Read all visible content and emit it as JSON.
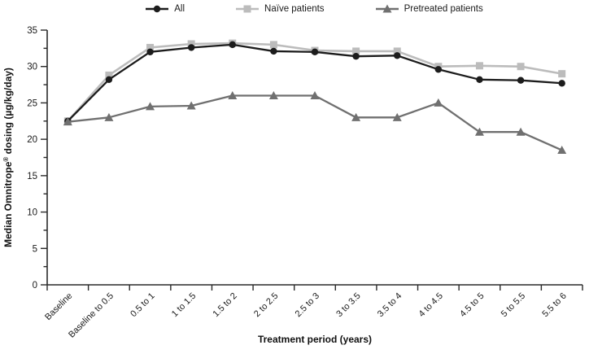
{
  "legend": {
    "position": "top",
    "items": [
      {
        "label": "All"
      },
      {
        "label": "Naïve patients"
      },
      {
        "label": "Pretreated patients"
      }
    ]
  },
  "chart_data": {
    "type": "line",
    "title": "",
    "xlabel": "Treatment period (years)",
    "ylabel": "Median Omnitrope® dosing (µg/kg/day)",
    "ylim": [
      0,
      35
    ],
    "y_major_step": 5,
    "y_minor_step": 2.5,
    "grid": false,
    "legend_position": "top",
    "x_tick_label_rotation": -45,
    "y_tick_labels": [
      "0",
      "5",
      "10",
      "15",
      "20",
      "25",
      "30",
      "35"
    ],
    "categories": [
      "Baseline",
      "Baseline to 0.5",
      "0.5 to 1",
      "1 to 1.5",
      "1.5 to 2",
      "2 to 2.5",
      "2.5 to 3",
      "3 to 3.5",
      "3.5 to 4",
      "4 to 4.5",
      "4.5 to 5",
      "5 to 5.5",
      "5.5 to 6"
    ],
    "series": [
      {
        "name": "All",
        "marker": "circle",
        "color": "#1c1c1c",
        "line_width": 2.3,
        "values": [
          22.5,
          28.2,
          32.0,
          32.6,
          33.0,
          32.1,
          32.0,
          31.4,
          31.5,
          29.6,
          28.2,
          28.1,
          27.7
        ]
      },
      {
        "name": "Naïve patients",
        "marker": "square",
        "color": "#bcbcbc",
        "line_width": 2.6,
        "values": [
          22.5,
          28.8,
          32.6,
          33.1,
          33.2,
          33.0,
          32.2,
          32.1,
          32.1,
          30.0,
          30.1,
          30.0,
          29.0
        ]
      },
      {
        "name": "Pretreated patients",
        "marker": "triangle",
        "color": "#707070",
        "line_width": 2.3,
        "values": [
          22.4,
          23.0,
          24.5,
          24.6,
          26.0,
          26.0,
          26.0,
          23.0,
          23.0,
          25.0,
          21.0,
          21.0,
          18.5
        ]
      }
    ],
    "axis_color": "#2a2a2a"
  }
}
